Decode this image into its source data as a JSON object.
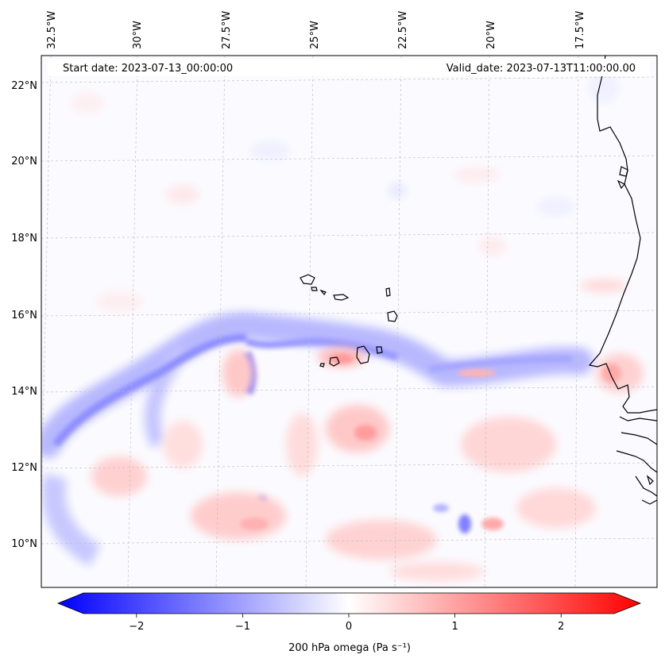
{
  "header": {
    "start_date": "Start date: 2023-07-13_00:00:00",
    "valid_date": "Valid_date: 2023-07-13T11:00:00.00"
  },
  "map": {
    "region": "Eastern tropical Atlantic / Cape Verde",
    "longitude_labels": [
      "32.5°W",
      "30°W",
      "27.5°W",
      "25°W",
      "22.5°W",
      "20°W",
      "17.5°W"
    ],
    "latitude_labels": [
      "22°N",
      "20°N",
      "18°N",
      "16°N",
      "14°N",
      "12°N",
      "10°N"
    ],
    "coastline_color": "#000000",
    "gridline_color": "#bbbbbb"
  },
  "colorbar": {
    "label": "200 hPa omega (Pa s⁻¹)",
    "ticks": [
      "−2",
      "−1",
      "0",
      "1",
      "2"
    ],
    "vmin": -2.5,
    "vmax": 2.5,
    "colormap": "bwr",
    "extend": "both",
    "low_color": "#0000ff",
    "mid_color": "#ffffff",
    "high_color": "#ff0000"
  }
}
